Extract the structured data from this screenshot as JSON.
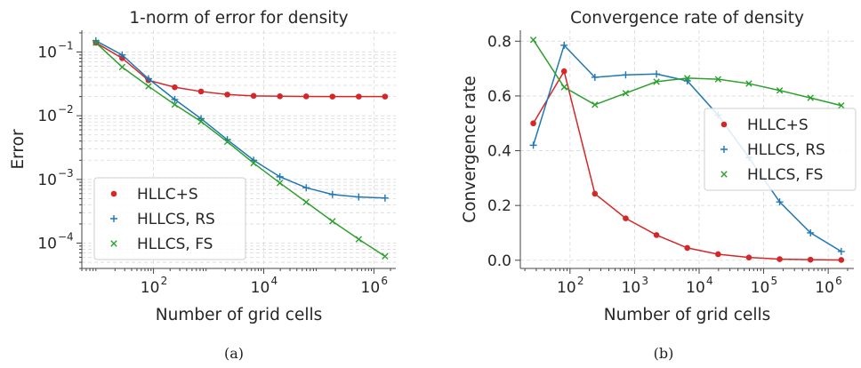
{
  "chart_data": [
    {
      "type": "line",
      "title": "1-norm of error for density",
      "xlabel": "Number of grid cells",
      "ylabel": "Error",
      "xscale": "log",
      "yscale": "log",
      "xlim": [
        5,
        2500000
      ],
      "ylim": [
        4e-05,
        0.22
      ],
      "xticks": [
        100,
        10000,
        1000000
      ],
      "xtick_labels": [
        "10",
        "10",
        "10"
      ],
      "xtick_exps": [
        "2",
        "4",
        "6"
      ],
      "yticks": [
        0.0001,
        0.001,
        0.01,
        0.1
      ],
      "ytick_labels": [
        "10",
        "10",
        "10",
        "10"
      ],
      "ytick_exps": [
        "−4",
        "−3",
        "−2",
        "−1"
      ],
      "grid": true,
      "legend_position": "lower-left",
      "x": [
        9,
        27,
        81,
        243,
        729,
        2187,
        6561,
        19683,
        59049,
        177147,
        531441,
        1594323
      ],
      "series": [
        {
          "name": "HLLC+S",
          "color": "#d62728",
          "marker": "dot",
          "values": [
            0.14,
            0.08,
            0.036,
            0.028,
            0.024,
            0.0215,
            0.0205,
            0.0202,
            0.0201,
            0.02,
            0.02,
            0.02
          ]
        },
        {
          "name": "HLLCS, RS",
          "color": "#1f77b4",
          "marker": "plus",
          "values": [
            0.15,
            0.09,
            0.038,
            0.018,
            0.009,
            0.0042,
            0.002,
            0.0011,
            0.00074,
            0.00058,
            0.00053,
            0.00051
          ]
        },
        {
          "name": "HLLCS, FS",
          "color": "#2ca02c",
          "marker": "x",
          "values": [
            0.14,
            0.058,
            0.029,
            0.015,
            0.0081,
            0.0039,
            0.0018,
            0.00088,
            0.00044,
            0.00022,
            0.000115,
            6.2e-05
          ]
        }
      ]
    },
    {
      "type": "line",
      "title": "Convergence rate of density",
      "xlabel": "Number of grid cells",
      "ylabel": "Convergence rate",
      "xscale": "log",
      "yscale": "linear",
      "xlim": [
        17,
        2500000
      ],
      "ylim": [
        -0.03,
        0.84
      ],
      "xticks": [
        100,
        1000,
        10000,
        100000,
        1000000
      ],
      "xtick_labels": [
        "10",
        "10",
        "10",
        "10",
        "10"
      ],
      "xtick_exps": [
        "2",
        "3",
        "4",
        "5",
        "6"
      ],
      "yticks": [
        0.0,
        0.2,
        0.4,
        0.6,
        0.8
      ],
      "ytick_labels": [
        "0.0",
        "0.2",
        "0.4",
        "0.6",
        "0.8"
      ],
      "grid": true,
      "legend_position": "center-right",
      "x": [
        27,
        81,
        243,
        729,
        2187,
        6561,
        19683,
        59049,
        177147,
        531441,
        1594323
      ],
      "series": [
        {
          "name": "HLLC+S",
          "color": "#d62728",
          "marker": "dot",
          "values": [
            0.5,
            0.69,
            0.243,
            0.153,
            0.092,
            0.045,
            0.022,
            0.01,
            0.004,
            0.002,
            0.001
          ]
        },
        {
          "name": "HLLCS, RS",
          "color": "#1f77b4",
          "marker": "plus",
          "values": [
            0.42,
            0.785,
            0.668,
            0.677,
            0.68,
            0.655,
            0.53,
            0.375,
            0.213,
            0.1,
            0.032
          ]
        },
        {
          "name": "HLLCS, FS",
          "color": "#2ca02c",
          "marker": "x",
          "values": [
            0.805,
            0.632,
            0.568,
            0.61,
            0.652,
            0.665,
            0.661,
            0.645,
            0.62,
            0.593,
            0.565
          ]
        }
      ]
    }
  ],
  "captions": [
    "(a)",
    "(b)"
  ]
}
